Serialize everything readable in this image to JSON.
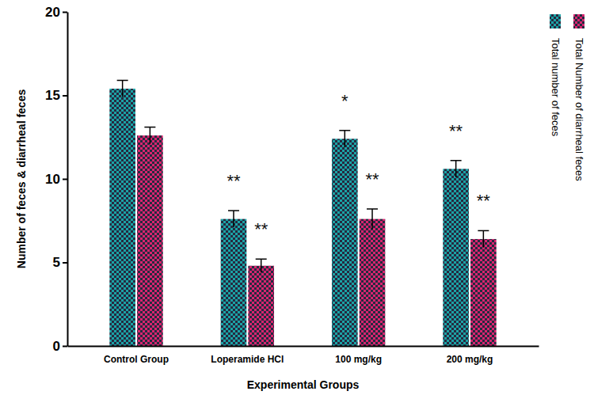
{
  "chart_data": {
    "type": "bar",
    "x_label": "Experimental Groups",
    "y_label": "Number of feces & diarrheal feces",
    "categories": [
      "Control Group",
      "Loperamide HCl",
      "100 mg/kg",
      "200 mg/kg"
    ],
    "series": [
      {
        "name": "Total number of feces",
        "color": "#1ba3a6",
        "values": [
          15.4,
          7.6,
          12.4,
          10.6
        ],
        "errors": [
          0.5,
          0.5,
          0.5,
          0.5
        ],
        "significance": [
          null,
          "**",
          "*",
          "**"
        ]
      },
      {
        "name": "Total Number of diarrheal feces",
        "color": "#d8256f",
        "values": [
          12.6,
          4.8,
          7.6,
          6.4
        ],
        "errors": [
          0.5,
          0.4,
          0.6,
          0.5
        ],
        "significance": [
          null,
          "**",
          "**",
          "**"
        ]
      }
    ],
    "ylim": [
      0,
      20
    ],
    "yticks": [
      0,
      5,
      10,
      15,
      20
    ],
    "grid": false,
    "legend": "right"
  }
}
